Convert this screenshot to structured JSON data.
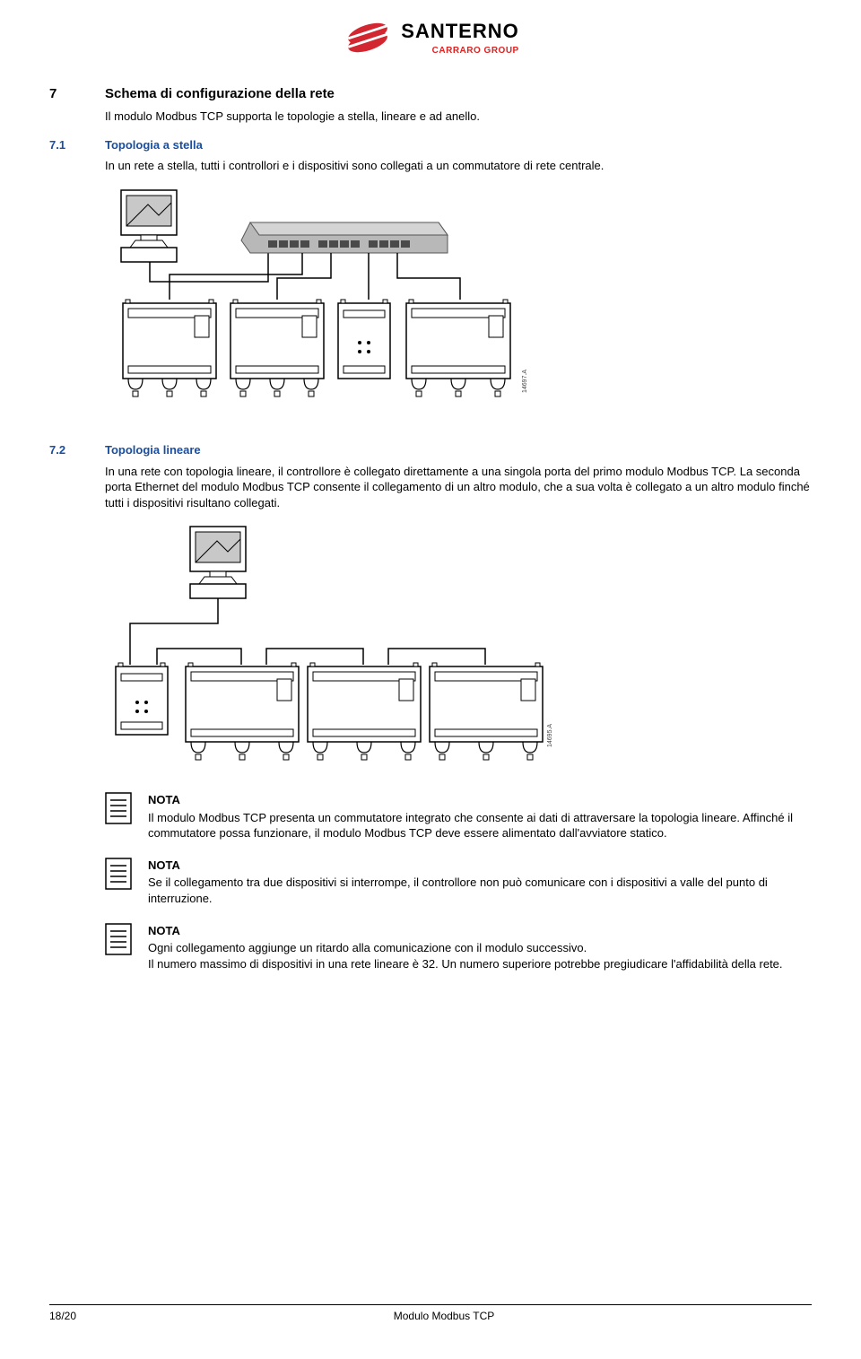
{
  "logo": {
    "name": "SANTERNO",
    "sub": "CARRARO GROUP"
  },
  "section": {
    "num": "7",
    "title": "Schema di configurazione della rete",
    "intro": "Il modulo Modbus TCP supporta le topologie a stella, lineare e ad anello."
  },
  "sub1": {
    "num": "7.1",
    "title": "Topologia a stella",
    "body": "In un rete a stella, tutti i controllori e i dispositivi sono collegati a un commutatore di rete centrale.",
    "diagram_ref": "14697.A"
  },
  "sub2": {
    "num": "7.2",
    "title": "Topologia lineare",
    "body": "In una rete con topologia lineare, il controllore è collegato direttamente a una singola porta del primo modulo Modbus TCP. La seconda porta Ethernet del modulo Modbus TCP consente il collegamento di un altro modulo, che a sua volta è collegato a un altro modulo finché tutti i dispositivi risultano collegati.",
    "diagram_ref": "14695.A"
  },
  "notes": [
    {
      "title": "NOTA",
      "body": "Il modulo Modbus TCP presenta un commutatore integrato che consente ai dati di attraversare la topologia lineare.   Affinché il commutatore possa funzionare, il modulo Modbus TCP deve essere alimentato dall'avviatore statico."
    },
    {
      "title": "NOTA",
      "body": "Se il collegamento tra due dispositivi si interrompe, il controllore non può comunicare con i dispositivi a valle del punto di interruzione."
    },
    {
      "title": "NOTA",
      "body": "Ogni collegamento aggiunge un ritardo alla comunicazione con il modulo successivo.\nIl numero massimo di dispositivi in una rete lineare è 32.   Un numero superiore potrebbe pregiudicare l'affidabilità della rete."
    }
  ],
  "footer": {
    "left": "18/20",
    "center": "Modulo Modbus TCP"
  },
  "colors": {
    "accent_blue": "#1a4ea0",
    "logo_red": "#d22730",
    "switch_gray": "#b8b8b8",
    "switch_dark": "#6a6a6a",
    "line": "#000000"
  }
}
